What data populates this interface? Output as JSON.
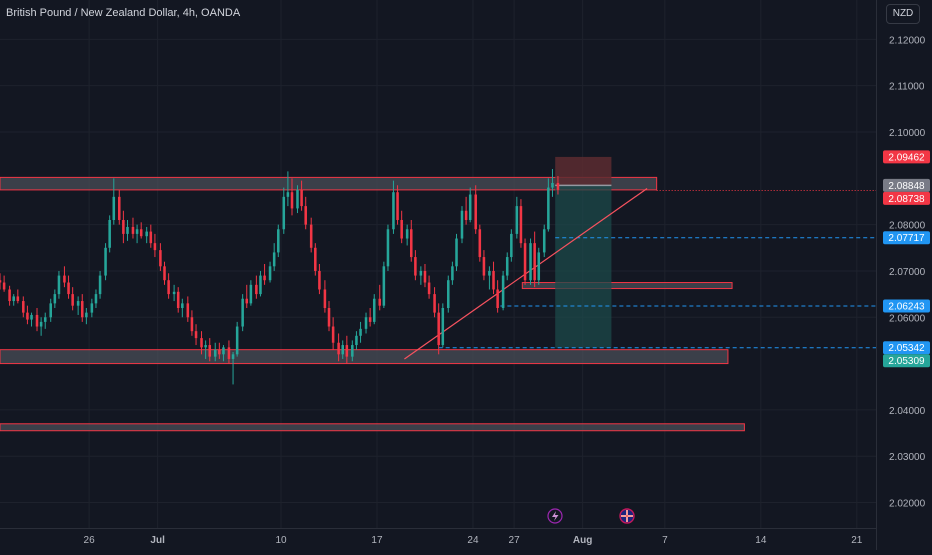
{
  "header": {
    "symbol_title": "British Pound / New Zealand Dollar, 4h, OANDA",
    "currency": "NZD"
  },
  "colors": {
    "background": "#131722",
    "grid": "#1e222d",
    "up": "#26a69a",
    "down": "#f23645",
    "zone_fill": "#4a4d57",
    "zone_border": "#f23645",
    "trend_line": "#f7525f",
    "level_line": "#2196f3",
    "target_fill": "#1c4a4a",
    "stop_fill": "#5c2b30"
  },
  "chart_data": {
    "type": "candlestick",
    "price_axis": {
      "range": [
        2.0145,
        2.1285
      ],
      "ticks": [
        "2.12000",
        "2.11000",
        "2.10000",
        "2.08000",
        "2.07000",
        "2.06000",
        "2.04000",
        "2.03000",
        "2.02000"
      ]
    },
    "time_axis": {
      "labels": [
        {
          "label": "26",
          "day": -5
        },
        {
          "label": "Jul",
          "day": 0
        },
        {
          "label": "10",
          "day": 9
        },
        {
          "label": "17",
          "day": 16
        },
        {
          "label": "24",
          "day": 23
        },
        {
          "label": "27",
          "day": 26
        },
        {
          "label": "Aug",
          "day": 31
        },
        {
          "label": "7",
          "day": 37
        },
        {
          "label": "14",
          "day": 44
        },
        {
          "label": "21",
          "day": 51
        }
      ],
      "range_days": [
        -11.5,
        52.4
      ]
    },
    "price_labels": [
      {
        "value": "2.09462",
        "price": 2.09462,
        "color": "#f23645"
      },
      {
        "value": "2.08848",
        "price": 2.08848,
        "color": "#787b86"
      },
      {
        "value": "2.08738",
        "price": 2.08738,
        "color": "#f23645"
      },
      {
        "value": "2.07717",
        "price": 2.07717,
        "color": "#2196f3"
      },
      {
        "value": "2.06243",
        "price": 2.06243,
        "color": "#2196f3"
      },
      {
        "value": "2.05342",
        "price": 2.05342,
        "color": "#2196f3"
      },
      {
        "value": "2.05309",
        "price": 2.05309,
        "color": "#26a69a"
      }
    ],
    "zones": [
      {
        "name": "resistance-zone",
        "day_start": -11.5,
        "day_end": 36.4,
        "price_top": 2.0902,
        "price_bottom": 2.0875
      },
      {
        "name": "support-zone",
        "day_start": -11.5,
        "day_end": 41.6,
        "price_top": 2.053,
        "price_bottom": 2.05
      },
      {
        "name": "small-zone",
        "day_start": 26.6,
        "day_end": 41.9,
        "price_top": 2.0675,
        "price_bottom": 2.0662
      },
      {
        "name": "lower-zone",
        "day_start": -11.5,
        "day_end": 42.8,
        "price_top": 2.037,
        "price_bottom": 2.0355
      }
    ],
    "trend_line": {
      "day_start": 18.0,
      "price_start": 2.051,
      "day_end": 35.7,
      "price_end": 2.0878
    },
    "levels": [
      {
        "price": 2.07717,
        "day_start": 29.0
      },
      {
        "price": 2.06243,
        "day_start": 25.0
      },
      {
        "price": 2.05342,
        "day_start": 20.5
      },
      {
        "price": 2.08738,
        "day_start": 36.4,
        "dotted": true
      }
    ],
    "position": {
      "day_start": 29.0,
      "day_end": 33.1,
      "stop": 2.09462,
      "entry": 2.08848,
      "target": 2.05342
    },
    "candles": [
      [
        -11.5,
        2.068,
        2.0695,
        2.066,
        2.0675
      ],
      [
        -11.2,
        2.0675,
        2.069,
        2.0655,
        2.066
      ],
      [
        -10.8,
        2.066,
        2.0668,
        2.0625,
        2.0635
      ],
      [
        -10.5,
        2.0635,
        2.065,
        2.0625,
        2.0645
      ],
      [
        -10.2,
        2.0645,
        2.066,
        2.063,
        2.0635
      ],
      [
        -9.8,
        2.0635,
        2.0645,
        2.06,
        2.061
      ],
      [
        -9.5,
        2.061,
        2.0625,
        2.0585,
        2.0595
      ],
      [
        -9.2,
        2.0595,
        2.061,
        2.058,
        2.0605
      ],
      [
        -8.8,
        2.0605,
        2.062,
        2.057,
        2.058
      ],
      [
        -8.5,
        2.058,
        2.06,
        2.056,
        2.059
      ],
      [
        -8.2,
        2.059,
        2.061,
        2.0575,
        2.06
      ],
      [
        -7.8,
        2.06,
        2.064,
        2.059,
        2.063
      ],
      [
        -7.5,
        2.063,
        2.066,
        2.062,
        2.065
      ],
      [
        -7.2,
        2.065,
        2.07,
        2.064,
        2.069
      ],
      [
        -6.8,
        2.069,
        2.071,
        2.0665,
        2.0675
      ],
      [
        -6.5,
        2.0675,
        2.069,
        2.064,
        2.065
      ],
      [
        -6.2,
        2.065,
        2.0665,
        2.0615,
        2.0625
      ],
      [
        -5.8,
        2.0625,
        2.0645,
        2.0605,
        2.0635
      ],
      [
        -5.5,
        2.0635,
        2.065,
        2.059,
        2.06
      ],
      [
        -5.2,
        2.06,
        2.062,
        2.0585,
        2.061
      ],
      [
        -4.8,
        2.061,
        2.064,
        2.06,
        2.063
      ],
      [
        -4.5,
        2.063,
        2.066,
        2.062,
        2.065
      ],
      [
        -4.2,
        2.065,
        2.07,
        2.064,
        2.069
      ],
      [
        -3.8,
        2.069,
        2.076,
        2.068,
        2.075
      ],
      [
        -3.5,
        2.075,
        2.082,
        2.074,
        2.081
      ],
      [
        -3.2,
        2.081,
        2.09,
        2.08,
        2.086
      ],
      [
        -2.8,
        2.086,
        2.0875,
        2.08,
        2.081
      ],
      [
        -2.5,
        2.081,
        2.083,
        2.076,
        2.078
      ],
      [
        -2.2,
        2.078,
        2.081,
        2.0765,
        2.0795
      ],
      [
        -1.8,
        2.0795,
        2.0815,
        2.077,
        2.078
      ],
      [
        -1.5,
        2.078,
        2.08,
        2.076,
        2.079
      ],
      [
        -1.2,
        2.079,
        2.0805,
        2.077,
        2.0775
      ],
      [
        -0.8,
        2.0775,
        2.0795,
        2.076,
        2.0785
      ],
      [
        -0.5,
        2.0785,
        2.08,
        2.075,
        2.076
      ],
      [
        -0.2,
        2.076,
        2.078,
        2.073,
        2.0745
      ],
      [
        0.2,
        2.0745,
        2.076,
        2.07,
        2.071
      ],
      [
        0.5,
        2.071,
        2.072,
        2.067,
        2.068
      ],
      [
        0.8,
        2.068,
        2.0695,
        2.064,
        2.065
      ],
      [
        1.2,
        2.065,
        2.067,
        2.0635,
        2.0655
      ],
      [
        1.5,
        2.0655,
        2.0665,
        2.061,
        2.062
      ],
      [
        1.8,
        2.062,
        2.064,
        2.06,
        2.063
      ],
      [
        2.2,
        2.063,
        2.0645,
        2.059,
        2.06
      ],
      [
        2.5,
        2.06,
        2.0615,
        2.056,
        2.057
      ],
      [
        2.8,
        2.057,
        2.0585,
        2.054,
        2.0555
      ],
      [
        3.2,
        2.0555,
        2.057,
        2.052,
        2.0535
      ],
      [
        3.5,
        2.0535,
        2.055,
        2.051,
        2.054
      ],
      [
        3.8,
        2.054,
        2.0555,
        2.0505,
        2.0515
      ],
      [
        4.2,
        2.0515,
        2.0545,
        2.0505,
        2.053
      ],
      [
        4.5,
        2.053,
        2.0545,
        2.051,
        2.052
      ],
      [
        4.8,
        2.052,
        2.054,
        2.0505,
        2.0535
      ],
      [
        5.2,
        2.0535,
        2.055,
        2.05,
        2.051
      ],
      [
        5.5,
        2.051,
        2.0525,
        2.0455,
        2.052
      ],
      [
        5.8,
        2.052,
        2.059,
        2.0515,
        2.058
      ],
      [
        6.2,
        2.058,
        2.065,
        2.057,
        2.064
      ],
      [
        6.5,
        2.064,
        2.067,
        2.062,
        2.063
      ],
      [
        6.8,
        2.063,
        2.068,
        2.0625,
        2.067
      ],
      [
        7.2,
        2.067,
        2.069,
        2.064,
        2.065
      ],
      [
        7.5,
        2.065,
        2.07,
        2.0645,
        2.069
      ],
      [
        7.8,
        2.069,
        2.0715,
        2.067,
        2.068
      ],
      [
        8.2,
        2.068,
        2.072,
        2.0675,
        2.071
      ],
      [
        8.5,
        2.071,
        2.076,
        2.07,
        2.074
      ],
      [
        8.8,
        2.074,
        2.08,
        2.073,
        2.079
      ],
      [
        9.2,
        2.079,
        2.088,
        2.078,
        2.086
      ],
      [
        9.5,
        2.086,
        2.0915,
        2.084,
        2.087
      ],
      [
        9.8,
        2.087,
        2.09,
        2.082,
        2.0835
      ],
      [
        10.2,
        2.0835,
        2.0885,
        2.0825,
        2.0875
      ],
      [
        10.5,
        2.0875,
        2.0895,
        2.083,
        2.084
      ],
      [
        10.8,
        2.084,
        2.086,
        2.079,
        2.08
      ],
      [
        11.2,
        2.08,
        2.0815,
        2.074,
        2.075
      ],
      [
        11.5,
        2.075,
        2.076,
        2.069,
        2.07
      ],
      [
        11.8,
        2.07,
        2.0715,
        2.065,
        2.066
      ],
      [
        12.2,
        2.066,
        2.068,
        2.061,
        2.062
      ],
      [
        12.5,
        2.062,
        2.0635,
        2.057,
        2.058
      ],
      [
        12.8,
        2.058,
        2.06,
        2.053,
        2.0545
      ],
      [
        13.2,
        2.0545,
        2.0565,
        2.0505,
        2.052
      ],
      [
        13.5,
        2.052,
        2.055,
        2.051,
        2.054
      ],
      [
        13.8,
        2.054,
        2.056,
        2.05,
        2.0515
      ],
      [
        14.2,
        2.0515,
        2.055,
        2.0505,
        2.054
      ],
      [
        14.5,
        2.054,
        2.057,
        2.053,
        2.056
      ],
      [
        14.8,
        2.056,
        2.059,
        2.0545,
        2.0575
      ],
      [
        15.2,
        2.0575,
        2.061,
        2.0565,
        2.06
      ],
      [
        15.5,
        2.06,
        2.062,
        2.058,
        2.059
      ],
      [
        15.8,
        2.059,
        2.065,
        2.0585,
        2.064
      ],
      [
        16.2,
        2.064,
        2.067,
        2.0615,
        2.0625
      ],
      [
        16.5,
        2.0625,
        2.072,
        2.062,
        2.071
      ],
      [
        16.8,
        2.071,
        2.08,
        2.07,
        2.079
      ],
      [
        17.2,
        2.079,
        2.0895,
        2.078,
        2.087
      ],
      [
        17.5,
        2.087,
        2.0885,
        2.08,
        2.081
      ],
      [
        17.8,
        2.081,
        2.083,
        2.076,
        2.077
      ],
      [
        18.2,
        2.077,
        2.08,
        2.0755,
        2.079
      ],
      [
        18.5,
        2.079,
        2.081,
        2.072,
        2.073
      ],
      [
        18.8,
        2.073,
        2.0745,
        2.068,
        2.069
      ],
      [
        19.2,
        2.069,
        2.071,
        2.067,
        2.07
      ],
      [
        19.5,
        2.07,
        2.0715,
        2.0665,
        2.0675
      ],
      [
        19.8,
        2.0675,
        2.069,
        2.064,
        2.065
      ],
      [
        20.2,
        2.065,
        2.0665,
        2.06,
        2.061
      ],
      [
        20.5,
        2.061,
        2.063,
        2.052,
        2.054
      ],
      [
        20.8,
        2.054,
        2.063,
        2.0535,
        2.062
      ],
      [
        21.2,
        2.062,
        2.069,
        2.061,
        2.068
      ],
      [
        21.5,
        2.068,
        2.072,
        2.067,
        2.071
      ],
      [
        21.8,
        2.071,
        2.078,
        2.07,
        2.077
      ],
      [
        22.2,
        2.077,
        2.084,
        2.076,
        2.083
      ],
      [
        22.5,
        2.083,
        2.086,
        2.08,
        2.081
      ],
      [
        22.8,
        2.081,
        2.088,
        2.0805,
        2.0865
      ],
      [
        23.2,
        2.0865,
        2.0885,
        2.078,
        2.079
      ],
      [
        23.5,
        2.079,
        2.08,
        2.072,
        2.073
      ],
      [
        23.8,
        2.073,
        2.0745,
        2.068,
        2.069
      ],
      [
        24.2,
        2.069,
        2.071,
        2.066,
        2.07
      ],
      [
        24.5,
        2.07,
        2.072,
        2.065,
        2.066
      ],
      [
        24.8,
        2.066,
        2.068,
        2.061,
        2.062
      ],
      [
        25.2,
        2.062,
        2.07,
        2.0615,
        2.069
      ],
      [
        25.5,
        2.069,
        2.074,
        2.068,
        2.073
      ],
      [
        25.8,
        2.073,
        2.079,
        2.072,
        2.078
      ],
      [
        26.2,
        2.078,
        2.086,
        2.077,
        2.084
      ],
      [
        26.5,
        2.084,
        2.0855,
        2.075,
        2.076
      ],
      [
        26.8,
        2.076,
        2.077,
        2.067,
        2.068
      ],
      [
        27.2,
        2.068,
        2.077,
        2.067,
        2.076
      ],
      [
        27.5,
        2.076,
        2.0785,
        2.0665,
        2.068
      ],
      [
        27.8,
        2.068,
        2.075,
        2.067,
        2.074
      ],
      [
        28.2,
        2.074,
        2.08,
        2.073,
        2.079
      ],
      [
        28.5,
        2.079,
        2.09,
        2.0785,
        2.088
      ],
      [
        28.8,
        2.088,
        2.092,
        2.086,
        2.089
      ],
      [
        29.2,
        2.089,
        2.0905,
        2.0865,
        2.0875
      ]
    ]
  }
}
